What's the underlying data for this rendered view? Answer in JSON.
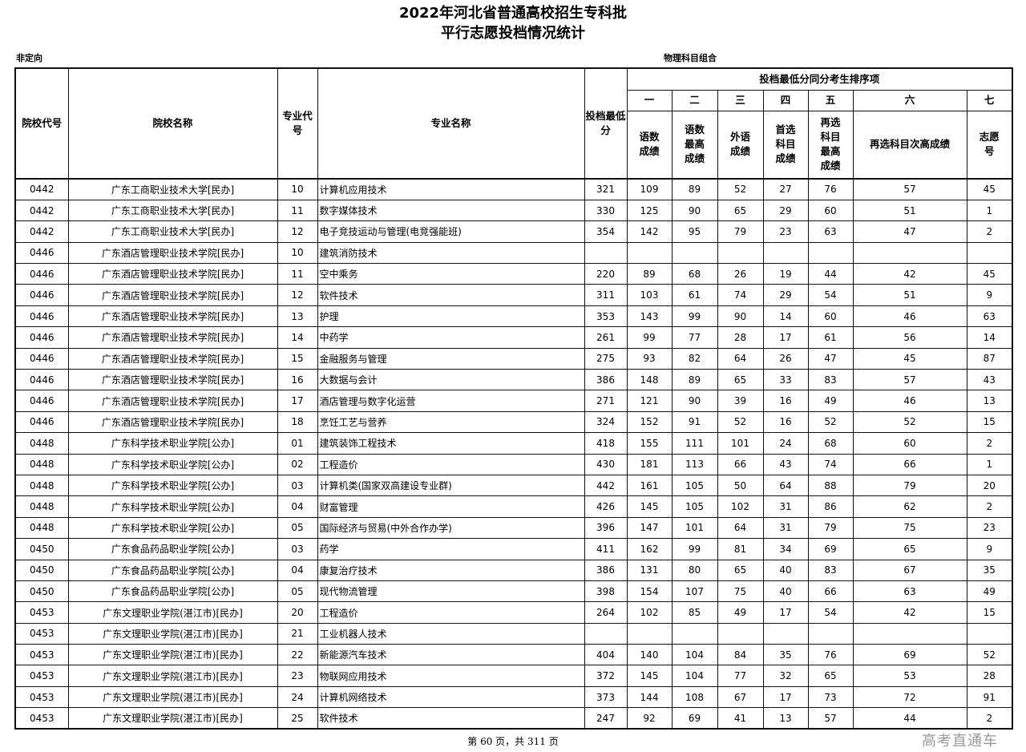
{
  "title_line1": "2022年河北省普通高校招生专科批",
  "title_line2": "平行志愿投档情况统计",
  "left_subtitle": "非定向",
  "right_subtitle": "物理科目组合",
  "headers": {
    "school_code": "院校代号",
    "school_name": "院校名称",
    "major_code": "专业代号",
    "major_name": "专业名称",
    "min_score": "投档最低分",
    "tiebreak_group": "投档最低分同分考生排序项",
    "order": [
      "一",
      "二",
      "三",
      "四",
      "五",
      "六",
      "七"
    ],
    "items": [
      "语数成绩",
      "语数最高成绩",
      "外语成绩",
      "首选科目成绩",
      "再选科目最高成绩",
      "再选科目次高成绩",
      "志愿号"
    ]
  },
  "rows": [
    [
      "0442",
      "广东工商职业技术大学[民办]",
      "10",
      "计算机应用技术",
      "321",
      "109",
      "89",
      "52",
      "27",
      "76",
      "57",
      "45"
    ],
    [
      "0442",
      "广东工商职业技术大学[民办]",
      "11",
      "数字媒体技术",
      "330",
      "125",
      "90",
      "65",
      "29",
      "60",
      "51",
      "1"
    ],
    [
      "0442",
      "广东工商职业技术大学[民办]",
      "12",
      "电子竞技运动与管理(电竞强能班)",
      "354",
      "142",
      "95",
      "79",
      "23",
      "63",
      "47",
      "2"
    ],
    [
      "0446",
      "广东酒店管理职业技术学院[民办]",
      "10",
      "建筑消防技术",
      "",
      "",
      "",
      "",
      "",
      "",
      "",
      ""
    ],
    [
      "0446",
      "广东酒店管理职业技术学院[民办]",
      "11",
      "空中乘务",
      "220",
      "89",
      "68",
      "26",
      "19",
      "44",
      "42",
      "45"
    ],
    [
      "0446",
      "广东酒店管理职业技术学院[民办]",
      "12",
      "软件技术",
      "311",
      "103",
      "61",
      "74",
      "29",
      "54",
      "51",
      "9"
    ],
    [
      "0446",
      "广东酒店管理职业技术学院[民办]",
      "13",
      "护理",
      "353",
      "143",
      "99",
      "90",
      "14",
      "60",
      "46",
      "63"
    ],
    [
      "0446",
      "广东酒店管理职业技术学院[民办]",
      "14",
      "中药学",
      "261",
      "99",
      "77",
      "28",
      "17",
      "61",
      "56",
      "14"
    ],
    [
      "0446",
      "广东酒店管理职业技术学院[民办]",
      "15",
      "金融服务与管理",
      "275",
      "93",
      "82",
      "64",
      "26",
      "47",
      "45",
      "87"
    ],
    [
      "0446",
      "广东酒店管理职业技术学院[民办]",
      "16",
      "大数据与会计",
      "386",
      "148",
      "89",
      "65",
      "33",
      "83",
      "57",
      "43"
    ],
    [
      "0446",
      "广东酒店管理职业技术学院[民办]",
      "17",
      "酒店管理与数字化运营",
      "271",
      "121",
      "90",
      "39",
      "16",
      "49",
      "46",
      "13"
    ],
    [
      "0446",
      "广东酒店管理职业技术学院[民办]",
      "18",
      "烹饪工艺与营养",
      "324",
      "152",
      "91",
      "52",
      "16",
      "52",
      "52",
      "15"
    ],
    [
      "0448",
      "广东科学技术职业学院[公办]",
      "01",
      "建筑装饰工程技术",
      "418",
      "155",
      "111",
      "101",
      "24",
      "68",
      "60",
      "2"
    ],
    [
      "0448",
      "广东科学技术职业学院[公办]",
      "02",
      "工程造价",
      "430",
      "181",
      "113",
      "66",
      "43",
      "74",
      "66",
      "1"
    ],
    [
      "0448",
      "广东科学技术职业学院[公办]",
      "03",
      "计算机类(国家双高建设专业群)",
      "442",
      "161",
      "105",
      "50",
      "64",
      "88",
      "79",
      "20"
    ],
    [
      "0448",
      "广东科学技术职业学院[公办]",
      "04",
      "财富管理",
      "426",
      "145",
      "105",
      "102",
      "31",
      "86",
      "62",
      "2"
    ],
    [
      "0448",
      "广东科学技术职业学院[公办]",
      "05",
      "国际经济与贸易(中外合作办学)",
      "396",
      "147",
      "101",
      "64",
      "31",
      "79",
      "75",
      "23"
    ],
    [
      "0450",
      "广东食品药品职业学院[公办]",
      "03",
      "药学",
      "411",
      "162",
      "99",
      "81",
      "34",
      "69",
      "65",
      "9"
    ],
    [
      "0450",
      "广东食品药品职业学院[公办]",
      "04",
      "康复治疗技术",
      "386",
      "131",
      "80",
      "65",
      "40",
      "83",
      "67",
      "35"
    ],
    [
      "0450",
      "广东食品药品职业学院[公办]",
      "05",
      "现代物流管理",
      "398",
      "154",
      "107",
      "75",
      "40",
      "66",
      "63",
      "49"
    ],
    [
      "0453",
      "广东文理职业学院(湛江市)[民办]",
      "20",
      "工程造价",
      "264",
      "102",
      "85",
      "49",
      "17",
      "54",
      "42",
      "15"
    ],
    [
      "0453",
      "广东文理职业学院(湛江市)[民办]",
      "21",
      "工业机器人技术",
      "",
      "",
      "",
      "",
      "",
      "",
      "",
      ""
    ],
    [
      "0453",
      "广东文理职业学院(湛江市)[民办]",
      "22",
      "新能源汽车技术",
      "404",
      "140",
      "104",
      "84",
      "35",
      "76",
      "69",
      "52"
    ],
    [
      "0453",
      "广东文理职业学院(湛江市)[民办]",
      "23",
      "物联网应用技术",
      "372",
      "145",
      "104",
      "77",
      "32",
      "65",
      "53",
      "28"
    ],
    [
      "0453",
      "广东文理职业学院(湛江市)[民办]",
      "24",
      "计算机网络技术",
      "373",
      "144",
      "108",
      "67",
      "17",
      "73",
      "72",
      "91"
    ],
    [
      "0453",
      "广东文理职业学院(湛江市)[民办]",
      "25",
      "软件技术",
      "247",
      "92",
      "69",
      "41",
      "13",
      "57",
      "44",
      "2"
    ]
  ],
  "footer": "第 60 页，共 311 页",
  "watermark": "高考直通车"
}
